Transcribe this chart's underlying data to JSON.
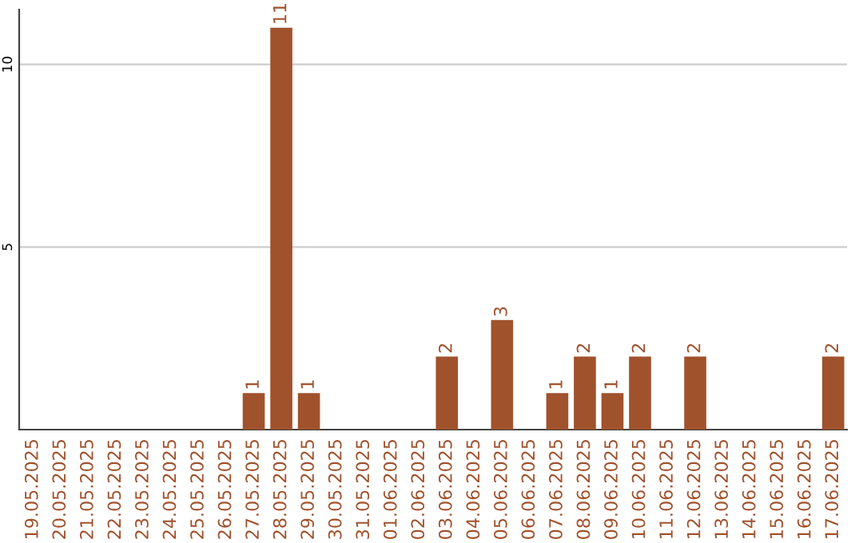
{
  "chart_data": {
    "type": "bar",
    "categories": [
      "19.05.2025",
      "20.05.2025",
      "21.05.2025",
      "22.05.2025",
      "23.05.2025",
      "24.05.2025",
      "25.05.2025",
      "26.05.2025",
      "27.05.2025",
      "28.05.2025",
      "29.05.2025",
      "30.05.2025",
      "31.05.2025",
      "01.06.2025",
      "02.06.2025",
      "03.06.2025",
      "04.06.2025",
      "05.06.2025",
      "06.06.2025",
      "07.06.2025",
      "08.06.2025",
      "09.06.2025",
      "10.06.2025",
      "11.06.2025",
      "12.06.2025",
      "13.06.2025",
      "14.06.2025",
      "15.06.2025",
      "16.06.2025",
      "17.06.2025"
    ],
    "values": [
      0,
      0,
      0,
      0,
      0,
      0,
      0,
      0,
      1,
      11,
      1,
      0,
      0,
      0,
      0,
      2,
      0,
      3,
      0,
      1,
      2,
      1,
      2,
      0,
      2,
      0,
      0,
      0,
      0,
      2
    ],
    "value_labels": [
      null,
      null,
      null,
      null,
      null,
      null,
      null,
      null,
      "1",
      "11",
      "1",
      null,
      null,
      null,
      null,
      "2",
      null,
      "3",
      null,
      "1",
      "2",
      "1",
      "2",
      null,
      "2",
      null,
      null,
      null,
      null,
      "2"
    ],
    "color": "#a0522d",
    "ylim": [
      0,
      11.5
    ],
    "yticks": [
      5,
      10
    ],
    "grid": "y"
  }
}
